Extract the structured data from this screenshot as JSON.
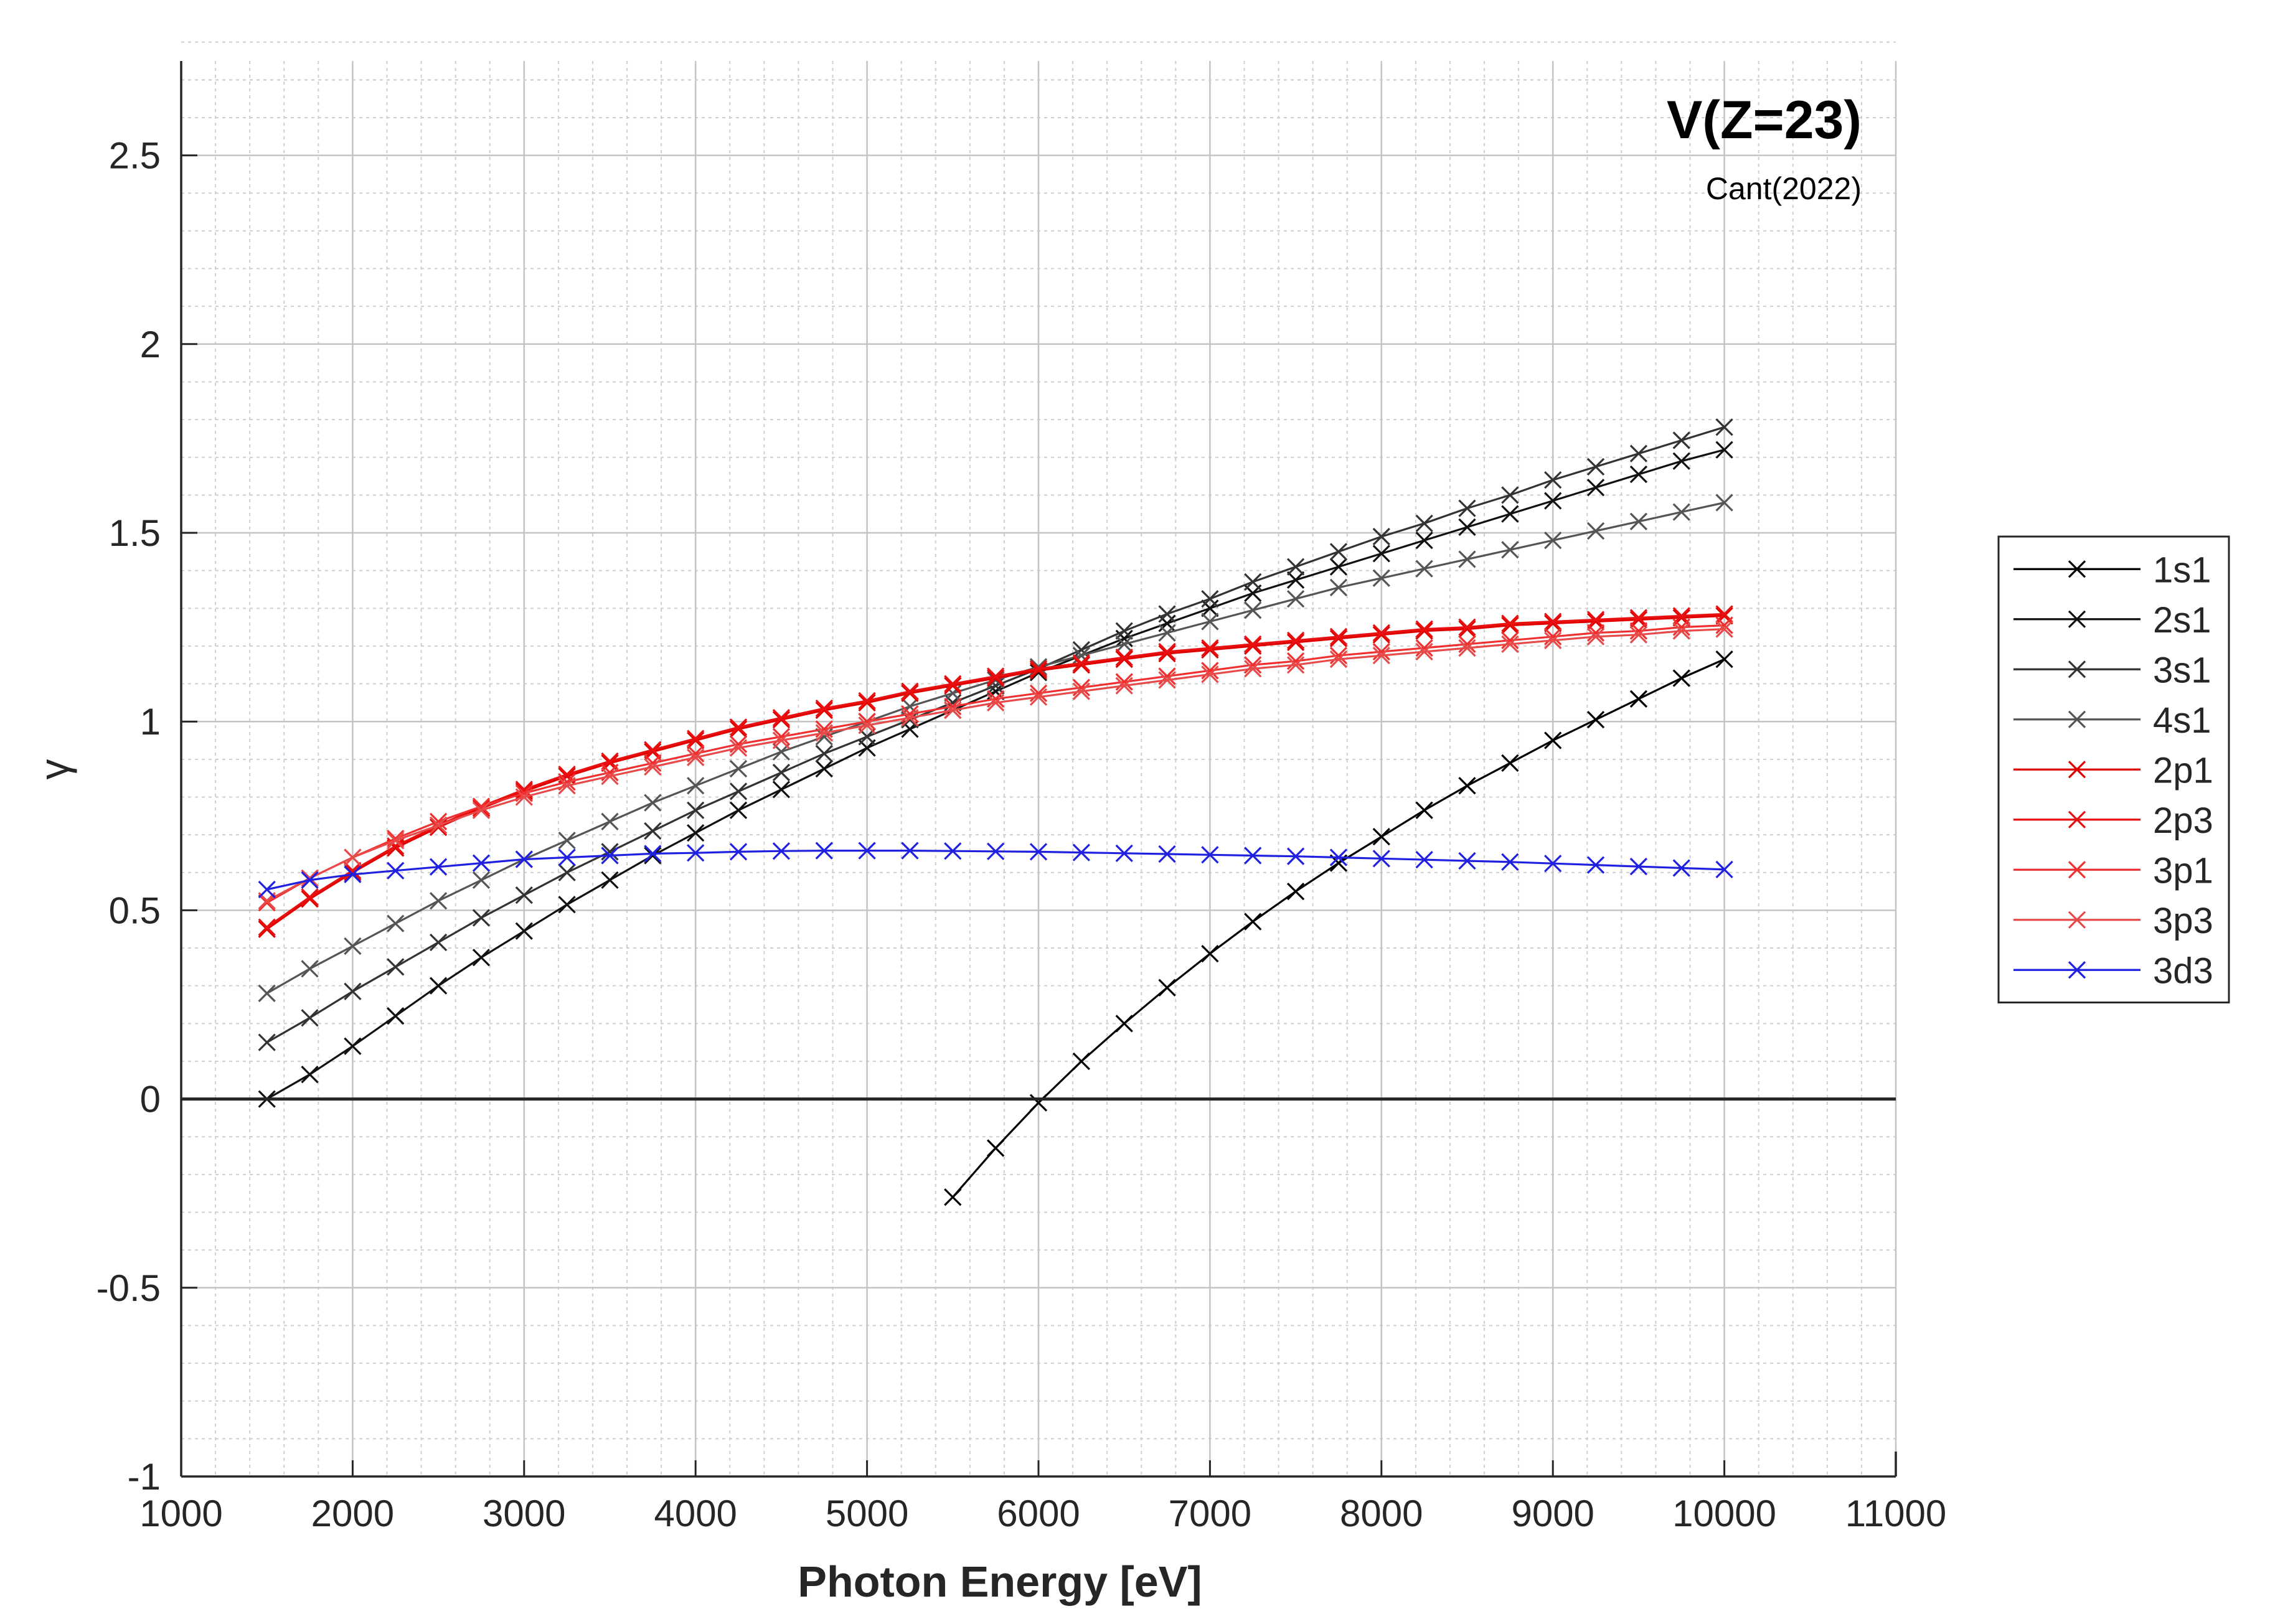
{
  "chart_data": {
    "type": "line",
    "title": "V(Z=23)",
    "subtitle": "Cant(2022)",
    "xlabel": "Photon Energy [eV]",
    "ylabel": "γ",
    "xlim": [
      1000,
      11000
    ],
    "ylim": [
      -1,
      2.75
    ],
    "xticks": [
      1000,
      2000,
      3000,
      4000,
      5000,
      6000,
      7000,
      8000,
      9000,
      10000,
      11000
    ],
    "yticks": [
      -1,
      -0.5,
      0,
      0.5,
      1,
      1.5,
      2,
      2.5
    ],
    "xtick_labels": [
      "1000",
      "2000",
      "3000",
      "4000",
      "5000",
      "6000",
      "7000",
      "8000",
      "9000",
      "10000",
      "11000"
    ],
    "ytick_labels": [
      "-1",
      "-0.5",
      "0",
      "0.5",
      "1",
      "1.5",
      "2",
      "2.5"
    ],
    "grid": true,
    "minor_grid": true,
    "zero_line": true,
    "legend_position": "outside-right",
    "marker": "x",
    "x": [
      1500,
      1750,
      2000,
      2250,
      2500,
      2750,
      3000,
      3250,
      3500,
      3750,
      4000,
      4250,
      4500,
      4750,
      5000,
      5250,
      5500,
      5750,
      6000,
      6250,
      6500,
      6750,
      7000,
      7250,
      7500,
      7750,
      8000,
      8250,
      8500,
      8750,
      9000,
      9250,
      9500,
      9750,
      10000
    ],
    "series": [
      {
        "name": "1s1",
        "color": "#000000",
        "x": [
          5500,
          5750,
          6000,
          6250,
          6500,
          6750,
          7000,
          7250,
          7500,
          7750,
          8000,
          8250,
          8500,
          8750,
          9000,
          9250,
          9500,
          9750,
          10000
        ],
        "values": [
          -0.26,
          -0.13,
          -0.01,
          0.1,
          0.2,
          0.295,
          0.385,
          0.47,
          0.55,
          0.625,
          0.695,
          0.765,
          0.83,
          0.89,
          0.95,
          1.005,
          1.06,
          1.115,
          1.165
        ]
      },
      {
        "name": "2s1",
        "color": "#111111",
        "values": [
          0.0,
          0.065,
          0.14,
          0.22,
          0.3,
          0.375,
          0.445,
          0.515,
          0.58,
          0.645,
          0.705,
          0.765,
          0.82,
          0.875,
          0.93,
          0.98,
          1.03,
          1.08,
          1.13,
          1.175,
          1.22,
          1.26,
          1.3,
          1.34,
          1.375,
          1.41,
          1.445,
          1.48,
          1.515,
          1.55,
          1.585,
          1.62,
          1.655,
          1.69,
          1.72
        ]
      },
      {
        "name": "3s1",
        "color": "#333333",
        "values": [
          0.15,
          0.215,
          0.285,
          0.35,
          0.415,
          0.48,
          0.54,
          0.6,
          0.655,
          0.71,
          0.765,
          0.815,
          0.865,
          0.915,
          0.96,
          1.005,
          1.05,
          1.095,
          1.14,
          1.19,
          1.24,
          1.285,
          1.325,
          1.37,
          1.41,
          1.45,
          1.49,
          1.525,
          1.565,
          1.6,
          1.64,
          1.675,
          1.71,
          1.745,
          1.78
        ]
      },
      {
        "name": "4s1",
        "color": "#555555",
        "values": [
          0.28,
          0.345,
          0.405,
          0.465,
          0.525,
          0.58,
          0.635,
          0.685,
          0.735,
          0.785,
          0.83,
          0.875,
          0.92,
          0.96,
          1.0,
          1.04,
          1.075,
          1.11,
          1.145,
          1.175,
          1.205,
          1.235,
          1.265,
          1.295,
          1.325,
          1.355,
          1.38,
          1.405,
          1.43,
          1.455,
          1.48,
          1.505,
          1.53,
          1.555,
          1.58
        ]
      },
      {
        "name": "2p1",
        "color": "#e00000",
        "values": [
          0.45,
          0.53,
          0.6,
          0.665,
          0.72,
          0.77,
          0.815,
          0.855,
          0.89,
          0.92,
          0.95,
          0.98,
          1.005,
          1.03,
          1.05,
          1.075,
          1.095,
          1.115,
          1.135,
          1.15,
          1.165,
          1.18,
          1.19,
          1.2,
          1.21,
          1.22,
          1.23,
          1.24,
          1.245,
          1.255,
          1.26,
          1.265,
          1.27,
          1.275,
          1.28
        ]
      },
      {
        "name": "2p3",
        "color": "#e81010",
        "values": [
          0.455,
          0.535,
          0.605,
          0.67,
          0.725,
          0.775,
          0.82,
          0.86,
          0.895,
          0.925,
          0.955,
          0.985,
          1.01,
          1.035,
          1.055,
          1.08,
          1.1,
          1.12,
          1.14,
          1.155,
          1.17,
          1.185,
          1.195,
          1.205,
          1.215,
          1.225,
          1.235,
          1.245,
          1.25,
          1.26,
          1.265,
          1.27,
          1.275,
          1.28,
          1.285
        ]
      },
      {
        "name": "3p1",
        "color": "#f03030",
        "values": [
          0.52,
          0.585,
          0.64,
          0.69,
          0.735,
          0.775,
          0.81,
          0.84,
          0.865,
          0.89,
          0.915,
          0.94,
          0.96,
          0.98,
          1.0,
          1.02,
          1.04,
          1.06,
          1.075,
          1.09,
          1.105,
          1.12,
          1.135,
          1.15,
          1.16,
          1.175,
          1.185,
          1.195,
          1.205,
          1.215,
          1.225,
          1.235,
          1.24,
          1.25,
          1.255
        ]
      },
      {
        "name": "3p3",
        "color": "#e84a4a",
        "values": [
          0.525,
          0.585,
          0.64,
          0.685,
          0.725,
          0.765,
          0.8,
          0.83,
          0.855,
          0.88,
          0.905,
          0.93,
          0.95,
          0.97,
          0.99,
          1.01,
          1.03,
          1.05,
          1.065,
          1.08,
          1.095,
          1.11,
          1.125,
          1.14,
          1.15,
          1.165,
          1.175,
          1.185,
          1.195,
          1.205,
          1.215,
          1.225,
          1.23,
          1.24,
          1.245
        ]
      },
      {
        "name": "3d3",
        "color": "#2020e0",
        "values": [
          0.555,
          0.58,
          0.595,
          0.605,
          0.615,
          0.625,
          0.635,
          0.64,
          0.645,
          0.65,
          0.652,
          0.655,
          0.657,
          0.658,
          0.658,
          0.658,
          0.657,
          0.656,
          0.655,
          0.653,
          0.651,
          0.649,
          0.647,
          0.645,
          0.643,
          0.64,
          0.637,
          0.634,
          0.631,
          0.628,
          0.624,
          0.62,
          0.616,
          0.612,
          0.608
        ]
      }
    ]
  }
}
